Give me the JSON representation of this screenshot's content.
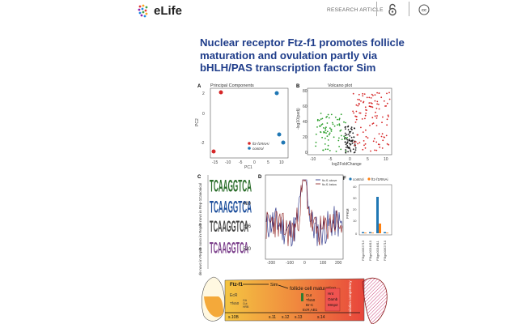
{
  "header": {
    "logo_text": "eLife",
    "section_label": "RESEARCH ARTICLE",
    "icons": [
      "open-access-icon",
      "creative-commons-icon"
    ]
  },
  "paper": {
    "title_lines": [
      "Nuclear receptor Ftz-f1 promotes follicle",
      "maturation and ovulation partly via",
      "bHLH/PAS transcription factor Sim"
    ]
  },
  "figure": {
    "panel_letters": [
      "A",
      "B",
      "C",
      "D",
      "F"
    ],
    "pca": {
      "title": "Principal Components",
      "xlabel": "PC1",
      "ylabel": "PC2",
      "xticks": [
        "-15",
        "-10",
        "-5",
        "0",
        "5",
        "10"
      ],
      "yticks": [
        "2",
        "0",
        "-2"
      ],
      "legend": [
        "ftz-f1RNAi",
        "control"
      ],
      "colors": {
        "ftz": "#d62728",
        "control": "#1f77b4"
      }
    },
    "volcano": {
      "title": "Volcano plot",
      "xlabel": "log2FoldChange",
      "ylabel": "-log10(padj)",
      "xticks": [
        "-10",
        "-5",
        "0",
        "5",
        "10"
      ],
      "yticks": [
        "80",
        "60",
        "40",
        "20",
        "0"
      ]
    },
    "motifs": {
      "row_labels": [
        "Canonical",
        "de novo in Rep-1",
        "de novo in Rep-2",
        "de novo in Rep-3"
      ],
      "side_numbers": [
        "480",
        "896",
        "530"
      ],
      "sequences": [
        "TCAAGGTCA",
        "TCAAGGTCA",
        "TCAAGGTCA",
        "TCAAGGTCA"
      ]
    },
    "profile": {
      "legend": [
        "ftz-f1 above",
        "ftz-f1 below"
      ],
      "xticks": [
        "-200",
        "-100",
        "0",
        "100",
        "200"
      ]
    },
    "fpkm": {
      "legend": [
        "control",
        "ftz-f1RNAi"
      ],
      "ylabel": "FPKM",
      "yticks": [
        "40",
        "30",
        "20",
        "10",
        "0"
      ],
      "categories": [
        "FBgn0062713",
        "FBgn0034810",
        "FBgn0034811",
        "FBgn0062710"
      ],
      "control_values": [
        1,
        1,
        30,
        1
      ],
      "ftz_values": [
        0.5,
        0.5,
        8,
        0.5
      ]
    },
    "model": {
      "ftz_label": "Ftz-f1",
      "sim_label": "Sim",
      "maturation_label": "follicle cell maturation",
      "left_genes": [
        "EcR",
        "Tfs50"
      ],
      "small_genes": [
        "GA",
        "Cut",
        "HRB"
      ],
      "mid_genes": [
        "Cut",
        "Tfs50",
        "Br-C",
        "EcR,AB1"
      ],
      "right_genes": [
        "Hnt",
        "Oamb",
        "Mmp2"
      ],
      "vertical_label": "ovulation competency",
      "stages": [
        "s.10B",
        "s.11",
        "s.12",
        "s.13",
        "s.14"
      ]
    }
  }
}
